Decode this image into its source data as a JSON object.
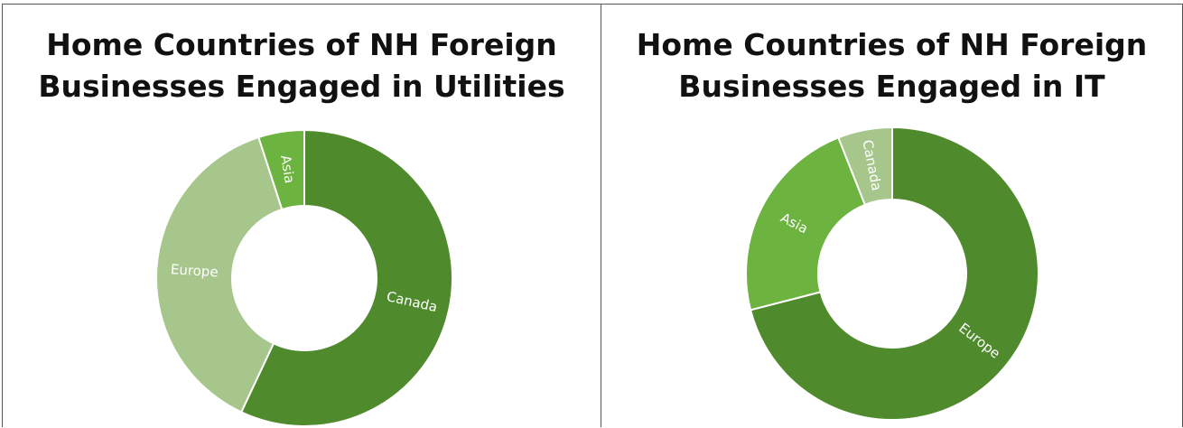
{
  "chart_data": [
    {
      "type": "donut",
      "title": "Home Countries of NH Foreign Businesses Engaged in Utilities",
      "categories": [
        "Canada",
        "Europe",
        "Asia"
      ],
      "values": [
        57,
        38,
        5
      ],
      "colors": [
        "#4f8a2c",
        "#a6c68c",
        "#6cb33f"
      ]
    },
    {
      "type": "donut",
      "title": "Home Countries of NH Foreign Businesses Engaged in IT",
      "categories": [
        "Europe",
        "Asia",
        "Canada"
      ],
      "values": [
        71,
        23,
        6
      ],
      "colors": [
        "#4f8a2c",
        "#6cb33f",
        "#a6c68c"
      ]
    }
  ]
}
